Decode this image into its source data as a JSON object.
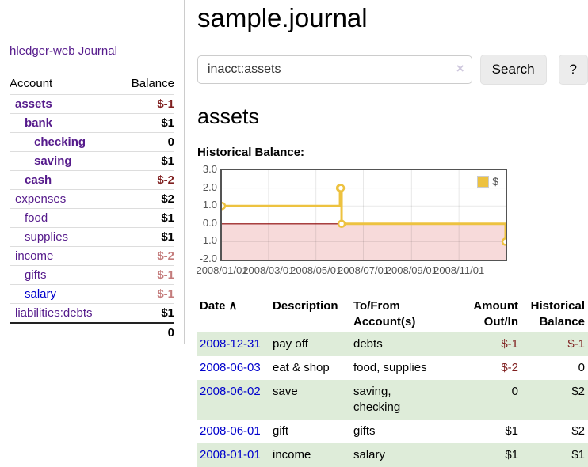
{
  "app": {
    "title": "hledger-web"
  },
  "colors": {
    "link_purple": "#551a8b",
    "link_blue": "#0000cc",
    "negative_strong": "#7f1f1f",
    "negative_soft": "#c47c7c",
    "row_green": "#deecd9",
    "chart_line": "#edc240",
    "chart_negative_fill": "#f7dada",
    "chart_zero_line": "#8b0000",
    "button_bg": "#ececec"
  },
  "sidebar": {
    "journal_label": "Journal",
    "headers": {
      "account": "Account",
      "balance": "Balance"
    },
    "accounts": [
      {
        "name": "assets",
        "balance": "$-1",
        "level": 1,
        "bold": true,
        "neg": "strong"
      },
      {
        "name": "bank",
        "balance": "$1",
        "level": 2,
        "bold": true
      },
      {
        "name": "checking",
        "balance": "0",
        "level": 3,
        "bold": true
      },
      {
        "name": "saving",
        "balance": "$1",
        "level": 3,
        "bold": true
      },
      {
        "name": "cash",
        "balance": "$-2",
        "level": 2,
        "bold": true,
        "neg": "strong"
      },
      {
        "name": "expenses",
        "balance": "$2",
        "level": 1
      },
      {
        "name": "food",
        "balance": "$1",
        "level": 2
      },
      {
        "name": "supplies",
        "balance": "$1",
        "level": 2
      },
      {
        "name": "income",
        "balance": "$-2",
        "level": 1,
        "neg": "soft"
      },
      {
        "name": "gifts",
        "balance": "$-1",
        "level": 2,
        "neg": "soft"
      },
      {
        "name": "salary",
        "balance": "$-1",
        "level": 2,
        "neg": "soft",
        "blue": true
      },
      {
        "name": "liabilities:debts",
        "balance": "$1",
        "level": 1
      }
    ],
    "total": "0"
  },
  "main": {
    "title": "sample.journal",
    "search": {
      "value": "inacct:assets",
      "clear_icon": "×",
      "search_button": "Search",
      "help_button": "?"
    },
    "account_heading": "assets"
  },
  "chart_data": {
    "type": "line",
    "step": true,
    "title": "Historical Balance:",
    "series": [
      {
        "name": "$",
        "color": "#edc240",
        "points": [
          [
            "2008-01-01",
            1
          ],
          [
            "2008-06-01",
            2
          ],
          [
            "2008-06-02",
            2
          ],
          [
            "2008-06-03",
            0
          ],
          [
            "2008-12-31",
            -1
          ]
        ]
      }
    ],
    "x_range": [
      "2008-01-01",
      "2008-12-31"
    ],
    "ylim": [
      -2,
      3
    ],
    "yticks": [
      3.0,
      2.0,
      1.0,
      0.0,
      -1.0,
      -2.0
    ],
    "ytick_labels": [
      "3.0",
      "2.0",
      "1.0",
      "0.0",
      "-1.0",
      "-2.0"
    ],
    "xtick_dates": [
      "2008-01-01",
      "2008-03-01",
      "2008-05-01",
      "2008-07-01",
      "2008-09-01",
      "2008-11-01"
    ],
    "xtick_labels": [
      "2008/01/01",
      "2008/03/01",
      "2008/05/01",
      "2008/07/01",
      "2008/09/01",
      "2008/11/01"
    ],
    "legend": {
      "label": "$",
      "position": "top-right"
    },
    "grid": true,
    "negative_region_fill": "#f7dada",
    "zero_line_color": "#8b0000"
  },
  "register": {
    "headers": {
      "date": "Date",
      "sort_indicator": "∧",
      "description": "Description",
      "accounts": "To/From Account(s)",
      "amount": "Amount Out/In",
      "balance": "Historical Balance"
    },
    "rows": [
      {
        "date": "2008-12-31",
        "description": "pay off",
        "accounts": "debts",
        "amount": "$-1",
        "balance": "$-1",
        "amount_neg": true,
        "balance_neg": true,
        "shade": true
      },
      {
        "date": "2008-06-03",
        "description": "eat & shop",
        "accounts": "food, supplies",
        "amount": "$-2",
        "balance": "0",
        "amount_neg": true,
        "balance_neg": false,
        "shade": false
      },
      {
        "date": "2008-06-02",
        "description": "save",
        "accounts": "saving,\nchecking",
        "amount": "0",
        "balance": "$2",
        "amount_neg": false,
        "balance_neg": false,
        "shade": true
      },
      {
        "date": "2008-06-01",
        "description": "gift",
        "accounts": "gifts",
        "amount": "$1",
        "balance": "$2",
        "amount_neg": false,
        "balance_neg": false,
        "shade": false
      },
      {
        "date": "2008-01-01",
        "description": "income",
        "accounts": "salary",
        "amount": "$1",
        "balance": "$1",
        "amount_neg": false,
        "balance_neg": false,
        "shade": true
      }
    ]
  }
}
